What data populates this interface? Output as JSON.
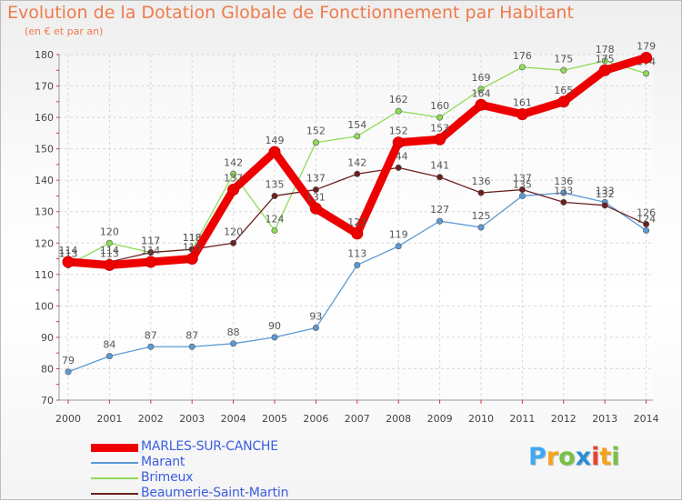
{
  "chart_data": {
    "type": "line",
    "title": "Evolution de la Dotation Globale de Fonctionnement par Habitant",
    "subtitle": "(en € et par an)",
    "x": [
      2000,
      2001,
      2002,
      2003,
      2004,
      2005,
      2006,
      2007,
      2008,
      2009,
      2010,
      2011,
      2012,
      2013,
      2014
    ],
    "ylim": [
      70,
      180
    ],
    "yticks": [
      70,
      80,
      90,
      100,
      110,
      120,
      130,
      140,
      150,
      160,
      170,
      180
    ],
    "grid": true,
    "legend_position": "bottom-left",
    "series": [
      {
        "name": "MARLES-SUR-CANCHE",
        "color": "#ee0000",
        "values": [
          114,
          113,
          114,
          115,
          137,
          149,
          131,
          123,
          152,
          153,
          164,
          161,
          165,
          175,
          179
        ]
      },
      {
        "name": "Marant",
        "color": "#5b9bd5",
        "values": [
          79,
          84,
          87,
          87,
          88,
          90,
          93,
          113,
          119,
          127,
          125,
          135,
          136,
          133,
          124
        ]
      },
      {
        "name": "Brimeux",
        "color": "#8fdb5a",
        "values": [
          113,
          120,
          117,
          118,
          142,
          124,
          152,
          154,
          162,
          160,
          169,
          176,
          175,
          178,
          174
        ]
      },
      {
        "name": "Beaumerie-Saint-Martin",
        "color": "#6b2020",
        "values": [
          113,
          114,
          117,
          118,
          120,
          135,
          137,
          142,
          144,
          141,
          136,
          137,
          133,
          132,
          126
        ]
      }
    ]
  },
  "logo": {
    "letters": [
      "P",
      "r",
      "o",
      "x",
      "i",
      "t",
      "i"
    ],
    "colors": [
      "#3fa9f5",
      "#f7a21b",
      "#7ac143",
      "#2b8fd6",
      "#e8452c",
      "#f7a21b",
      "#7ac143"
    ]
  }
}
